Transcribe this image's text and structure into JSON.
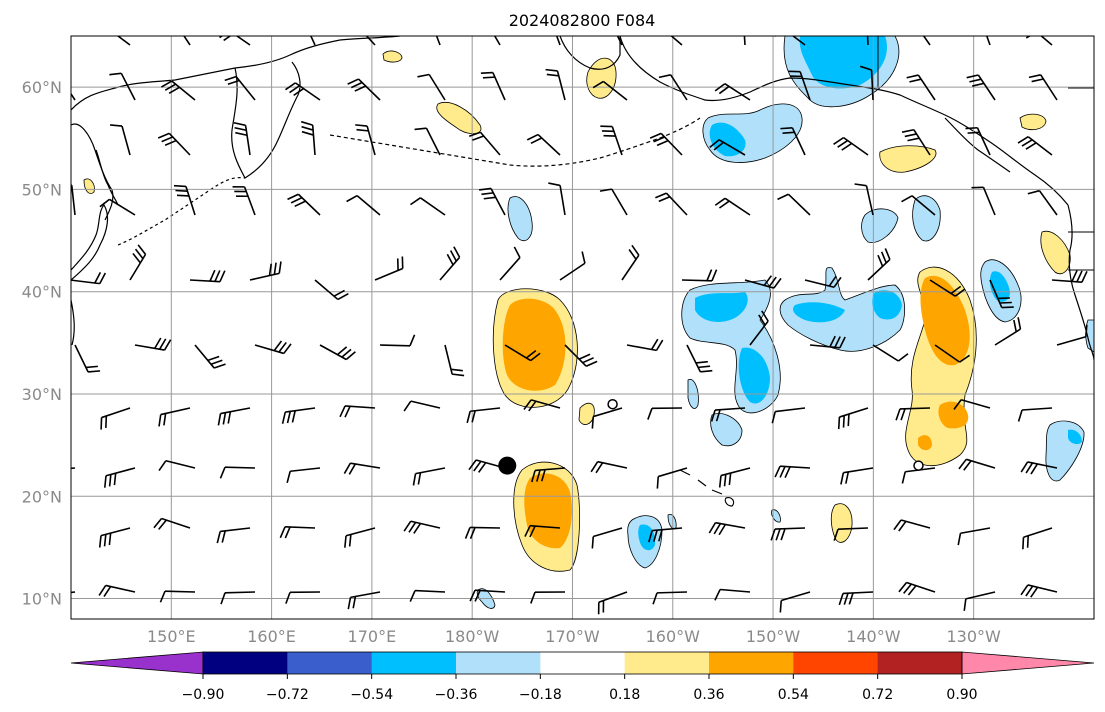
{
  "title": "2024082800 F084",
  "map": {
    "lat_ticks": [
      {
        "value": 60,
        "label": "60°N"
      },
      {
        "value": 50,
        "label": "50°N"
      },
      {
        "value": 40,
        "label": "40°N"
      },
      {
        "value": 30,
        "label": "30°N"
      },
      {
        "value": 20,
        "label": "20°N"
      },
      {
        "value": 10,
        "label": "10°N"
      }
    ],
    "lon_ticks": [
      {
        "value": 150,
        "label": "150°E"
      },
      {
        "value": 160,
        "label": "160°E"
      },
      {
        "value": 170,
        "label": "170°E"
      },
      {
        "value": 180,
        "label": "180°W"
      },
      {
        "value": 190,
        "label": "170°W"
      },
      {
        "value": 200,
        "label": "160°W"
      },
      {
        "value": 210,
        "label": "150°W"
      },
      {
        "value": 220,
        "label": "140°W"
      },
      {
        "value": 230,
        "label": "130°W"
      }
    ],
    "extent": {
      "lon_min": 140,
      "lon_max": 242,
      "lat_min": 8,
      "lat_max": 65
    },
    "grid": true
  },
  "colorbar": {
    "levels": [
      "−0.90",
      "−0.72",
      "−0.54",
      "−0.36",
      "−0.18",
      "0.18",
      "0.36",
      "0.54",
      "0.72",
      "0.90"
    ],
    "colors": [
      "#9932cc",
      "#000080",
      "#3a5fcd",
      "#00bfff",
      "#b0e0fa",
      "#ffffff",
      "#ffeb8c",
      "#ffa500",
      "#ff4500",
      "#b22222",
      "#ff88aa"
    ]
  },
  "markers": [
    {
      "type": "filled-circle",
      "lon": 183.5,
      "lat": 23
    },
    {
      "type": "open-circle",
      "lon": 194,
      "lat": 29
    },
    {
      "type": "open-circle",
      "lon": 224.5,
      "lat": 23
    }
  ]
}
